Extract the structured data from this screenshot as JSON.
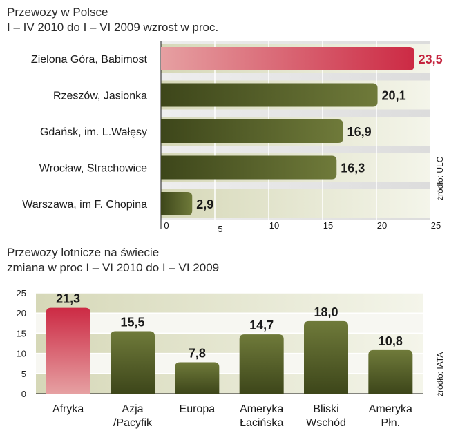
{
  "chart_data": [
    {
      "type": "bar",
      "orientation": "horizontal",
      "title": "Przewozy w Polsce",
      "subtitle": "I – IV 2010 do  I – VI 2009 wzrost w proc.",
      "categories": [
        "Zielona Góra, Babimost",
        "Rzeszów, Jasionka",
        "Gdańsk, im. L.Wałęsy",
        "Wrocław, Strachowice",
        "Warszawa, im F. Chopina"
      ],
      "values": [
        23.5,
        20.1,
        16.9,
        16.3,
        2.9
      ],
      "value_labels": [
        "23,5",
        "20,1",
        "16,9",
        "16,3",
        "2,9"
      ],
      "highlight_index": 0,
      "xlim": [
        0,
        25
      ],
      "ticks": [
        "0",
        "5",
        "10",
        "15",
        "20",
        "25"
      ],
      "grid": true,
      "source": "źródło: ULC",
      "colors": {
        "bar": "#4f5a24",
        "highlight": "#cc2a44",
        "band": "#d6d8b8"
      }
    },
    {
      "type": "bar",
      "orientation": "vertical",
      "title": "Przewozy lotnicze na świecie",
      "subtitle": "zmiana w proc  I – VI 2010 do I – VI 2009",
      "categories": [
        "Afryka",
        "Azja\n/Pacyfik",
        "Europa",
        "Ameryka\nŁacińska",
        "Bliski\nWschód",
        "Ameryka\nPłn."
      ],
      "values": [
        21.3,
        15.5,
        7.8,
        14.7,
        18.0,
        10.8
      ],
      "value_labels": [
        "21,3",
        "15,5",
        "7,8",
        "14,7",
        "18,0",
        "10,8"
      ],
      "highlight_index": 0,
      "ylim": [
        0,
        25
      ],
      "ticks": [
        "0",
        "5",
        "10",
        "15",
        "20",
        "25"
      ],
      "grid": true,
      "source": "źródło: IATA",
      "colors": {
        "bar": "#4f5a24",
        "highlight": "#cc2a44",
        "band": "#d6d8b8"
      }
    }
  ]
}
